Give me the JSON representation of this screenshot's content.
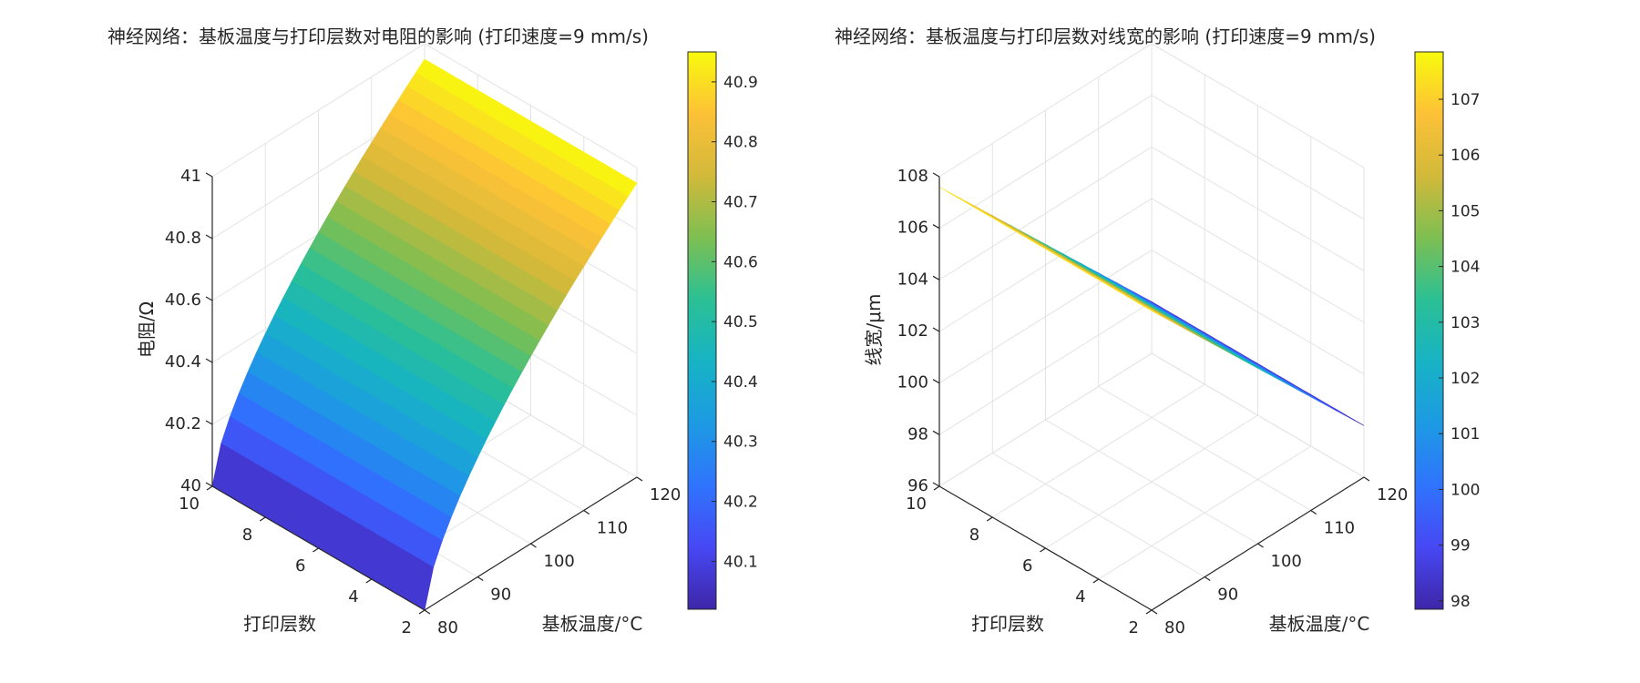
{
  "figure": {
    "colormap": [
      "#3e26a8",
      "#4748f4",
      "#2f74fd",
      "#1d9ae3",
      "#17b3c5",
      "#2bc094",
      "#7ebf51",
      "#d2b93a",
      "#fdc137",
      "#f8fa0d"
    ]
  },
  "chart_data": [
    {
      "type": "surface",
      "title": "神经网络：基板温度与打印层数对电阻的影响 (打印速度=9 mm/s)",
      "xlabel": "基板温度/°C",
      "ylabel": "打印层数",
      "zlabel": "电阻/Ω",
      "xlim": [
        80,
        120
      ],
      "ylim": [
        2,
        10
      ],
      "zlim": [
        40,
        41
      ],
      "xticks": [
        "80",
        "90",
        "100",
        "110",
        "120"
      ],
      "yticks": [
        "2",
        "4",
        "6",
        "8",
        "10"
      ],
      "zticks": [
        "40",
        "40.2",
        "40.4",
        "40.6",
        "40.8",
        "41"
      ],
      "surface": {
        "x_range": [
          80,
          120
        ],
        "y_range": [
          2,
          10
        ],
        "model": "z = 40.0 + 0.95 * ((x-80)/40)^0.65",
        "z_min": 40.02,
        "z_max": 40.95
      },
      "colorbar": {
        "range": [
          40.02,
          40.95
        ],
        "ticks": [
          "40.1",
          "40.2",
          "40.3",
          "40.4",
          "40.5",
          "40.6",
          "40.7",
          "40.8",
          "40.9"
        ]
      }
    },
    {
      "type": "surface",
      "title": "神经网络：基板温度与打印层数对线宽的影响 (打印速度=9 mm/s)",
      "xlabel": "基板温度/°C",
      "ylabel": "打印层数",
      "zlabel": "线宽/μm",
      "xlim": [
        80,
        120
      ],
      "ylim": [
        2,
        10
      ],
      "zlim": [
        96,
        108
      ],
      "xticks": [
        "80",
        "90",
        "100",
        "110",
        "120"
      ],
      "yticks": [
        "2",
        "4",
        "6",
        "8",
        "10"
      ],
      "zticks": [
        "96",
        "98",
        "100",
        "102",
        "104",
        "106",
        "108"
      ],
      "surface": {
        "x_range": [
          80,
          120
        ],
        "y_range": [
          2,
          10
        ],
        "model": "z = 107.6 - 9.6 * (x-80)/40",
        "z_min": 98.0,
        "z_max": 107.8
      },
      "colorbar": {
        "range": [
          97.85,
          107.85
        ],
        "ticks": [
          "98",
          "99",
          "100",
          "101",
          "102",
          "103",
          "104",
          "105",
          "106",
          "107"
        ]
      }
    }
  ]
}
